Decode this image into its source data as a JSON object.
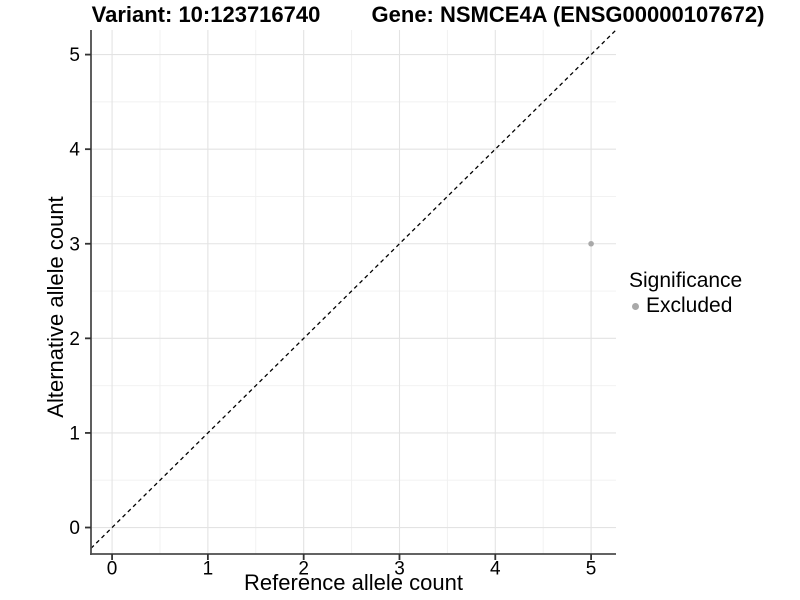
{
  "figure": {
    "title_left": "Variant: 10:123716740",
    "title_right": "Gene: NSMCE4A (ENSG00000107672)"
  },
  "chart_data": {
    "type": "scatter",
    "xlabel": "Reference allele count",
    "ylabel": "Alternative allele count",
    "x_ticks": [
      0,
      1,
      2,
      3,
      4,
      5
    ],
    "y_ticks": [
      0,
      1,
      2,
      3,
      4,
      5
    ],
    "xlim": [
      -0.22,
      5.26
    ],
    "ylim": [
      -0.28,
      5.26
    ],
    "grid": {
      "major": true,
      "minor": true
    },
    "identity_line": {
      "type": "abline",
      "slope": 1,
      "intercept": 0,
      "style": "dashed",
      "color": "#000000"
    },
    "series": [
      {
        "name": "Excluded",
        "color": "#a9a9a9",
        "points": [
          {
            "x": 5,
            "y": 3
          }
        ]
      }
    ],
    "legend": {
      "title": "Significance",
      "position": "right",
      "items": [
        {
          "label": "Excluded",
          "color": "#a9a9a9"
        }
      ]
    },
    "colors": {
      "grid_major": "#e3e3e3",
      "grid_minor": "#f0f0f0",
      "axis_line": "#4d4d4d",
      "tick_mark": "#333333",
      "tick_text": "#000000"
    }
  }
}
